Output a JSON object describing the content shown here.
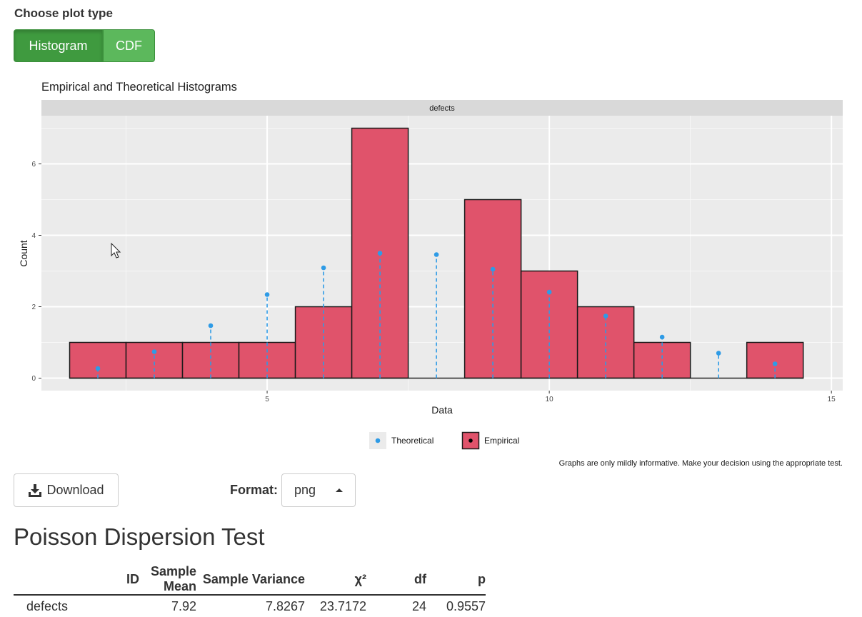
{
  "plot_type": {
    "label": "Choose plot type",
    "options": [
      "Histogram",
      "CDF"
    ],
    "selected": "Histogram"
  },
  "colors": {
    "button_active": "#3f9a3f",
    "button": "#5cb85c",
    "bar_fill": "#e0536b",
    "theoretical": "#2e9be6",
    "panel_bg": "#ebebeb",
    "strip_bg": "#d9d9d9"
  },
  "chart_data": {
    "type": "bar",
    "title": "Empirical and Theoretical Histograms",
    "facet_label": "defects",
    "xlabel": "Data",
    "ylabel": "Count",
    "xlim": [
      1.0,
      15.2
    ],
    "ylim": [
      -0.35,
      7.35
    ],
    "x_ticks": [
      5,
      10,
      15
    ],
    "y_ticks": [
      0,
      2,
      4,
      6
    ],
    "grid": true,
    "legend_position": "bottom",
    "caption": "Graphs are only mildly informative. Make your decision using the appropriate test.",
    "series": [
      {
        "name": "Empirical",
        "x": [
          2,
          3,
          4,
          5,
          6,
          7,
          8,
          9,
          10,
          11,
          12,
          13,
          14
        ],
        "values": [
          1,
          1,
          1,
          1,
          2,
          7,
          0,
          5,
          3,
          2,
          1,
          0,
          1
        ]
      },
      {
        "name": "Theoretical",
        "x": [
          2,
          3,
          4,
          5,
          6,
          7,
          8,
          9,
          10,
          11,
          12,
          13,
          14
        ],
        "values": [
          0.27,
          0.74,
          1.47,
          2.34,
          3.09,
          3.5,
          3.46,
          3.05,
          2.41,
          1.74,
          1.15,
          0.7,
          0.4
        ]
      }
    ]
  },
  "download": {
    "label": "Download",
    "icon": "download-icon"
  },
  "format": {
    "label": "Format:",
    "value": "png"
  },
  "test": {
    "title": "Poisson Dispersion Test",
    "headers": [
      "ID",
      "Sample Mean",
      "Sample Variance",
      "χ²",
      "df",
      "p"
    ],
    "rows": [
      [
        "defects",
        "7.92",
        "7.8267",
        "23.7172",
        "24",
        "0.9557"
      ]
    ]
  }
}
